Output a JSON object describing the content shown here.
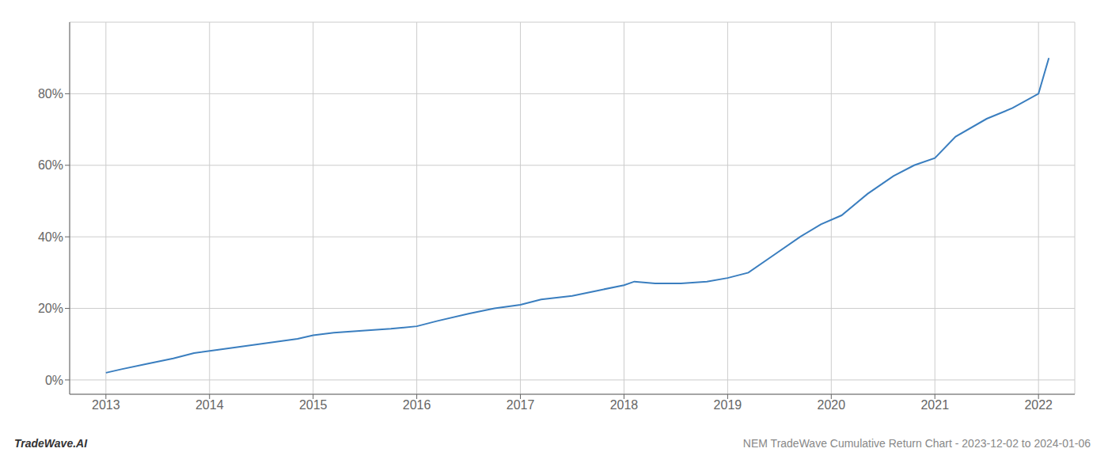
{
  "chart_data": {
    "type": "line",
    "title": "NEM TradeWave Cumulative Return Chart - 2023-12-02 to 2024-01-06",
    "annotations": [
      "TradeWave.AI"
    ],
    "x": [
      2013.0,
      2013.15,
      2013.4,
      2013.65,
      2013.85,
      2014.1,
      2014.35,
      2014.6,
      2014.85,
      2015.0,
      2015.2,
      2015.5,
      2015.75,
      2016.0,
      2016.2,
      2016.5,
      2016.75,
      2017.0,
      2017.2,
      2017.5,
      2017.75,
      2018.0,
      2018.1,
      2018.3,
      2018.55,
      2018.8,
      2019.0,
      2019.2,
      2019.45,
      2019.7,
      2019.9,
      2020.1,
      2020.35,
      2020.6,
      2020.8,
      2021.0,
      2021.2,
      2021.5,
      2021.75,
      2022.0,
      2022.1
    ],
    "values": [
      2.0,
      3.0,
      4.5,
      6.0,
      7.5,
      8.5,
      9.5,
      10.5,
      11.5,
      12.5,
      13.2,
      13.8,
      14.3,
      15.0,
      16.5,
      18.5,
      20.0,
      21.0,
      22.5,
      23.5,
      25.0,
      26.5,
      27.5,
      27.0,
      27.0,
      27.5,
      28.5,
      30.0,
      35.0,
      40.0,
      43.5,
      46.0,
      52.0,
      57.0,
      60.0,
      62.0,
      68.0,
      73.0,
      76.0,
      80.0,
      90.0
    ],
    "color": "#3a7ebf",
    "xlim": [
      2012.65,
      2022.35
    ],
    "xticks": [
      2013,
      2014,
      2015,
      2016,
      2017,
      2018,
      2019,
      2020,
      2021,
      2022
    ],
    "ylim": [
      -4,
      100
    ],
    "yticks": [
      {
        "value": 0,
        "label": "0%"
      },
      {
        "value": 20,
        "label": "20%"
      },
      {
        "value": 40,
        "label": "40%"
      },
      {
        "value": 60,
        "label": "60%"
      },
      {
        "value": 80,
        "label": "80%"
      }
    ],
    "grid": true
  }
}
